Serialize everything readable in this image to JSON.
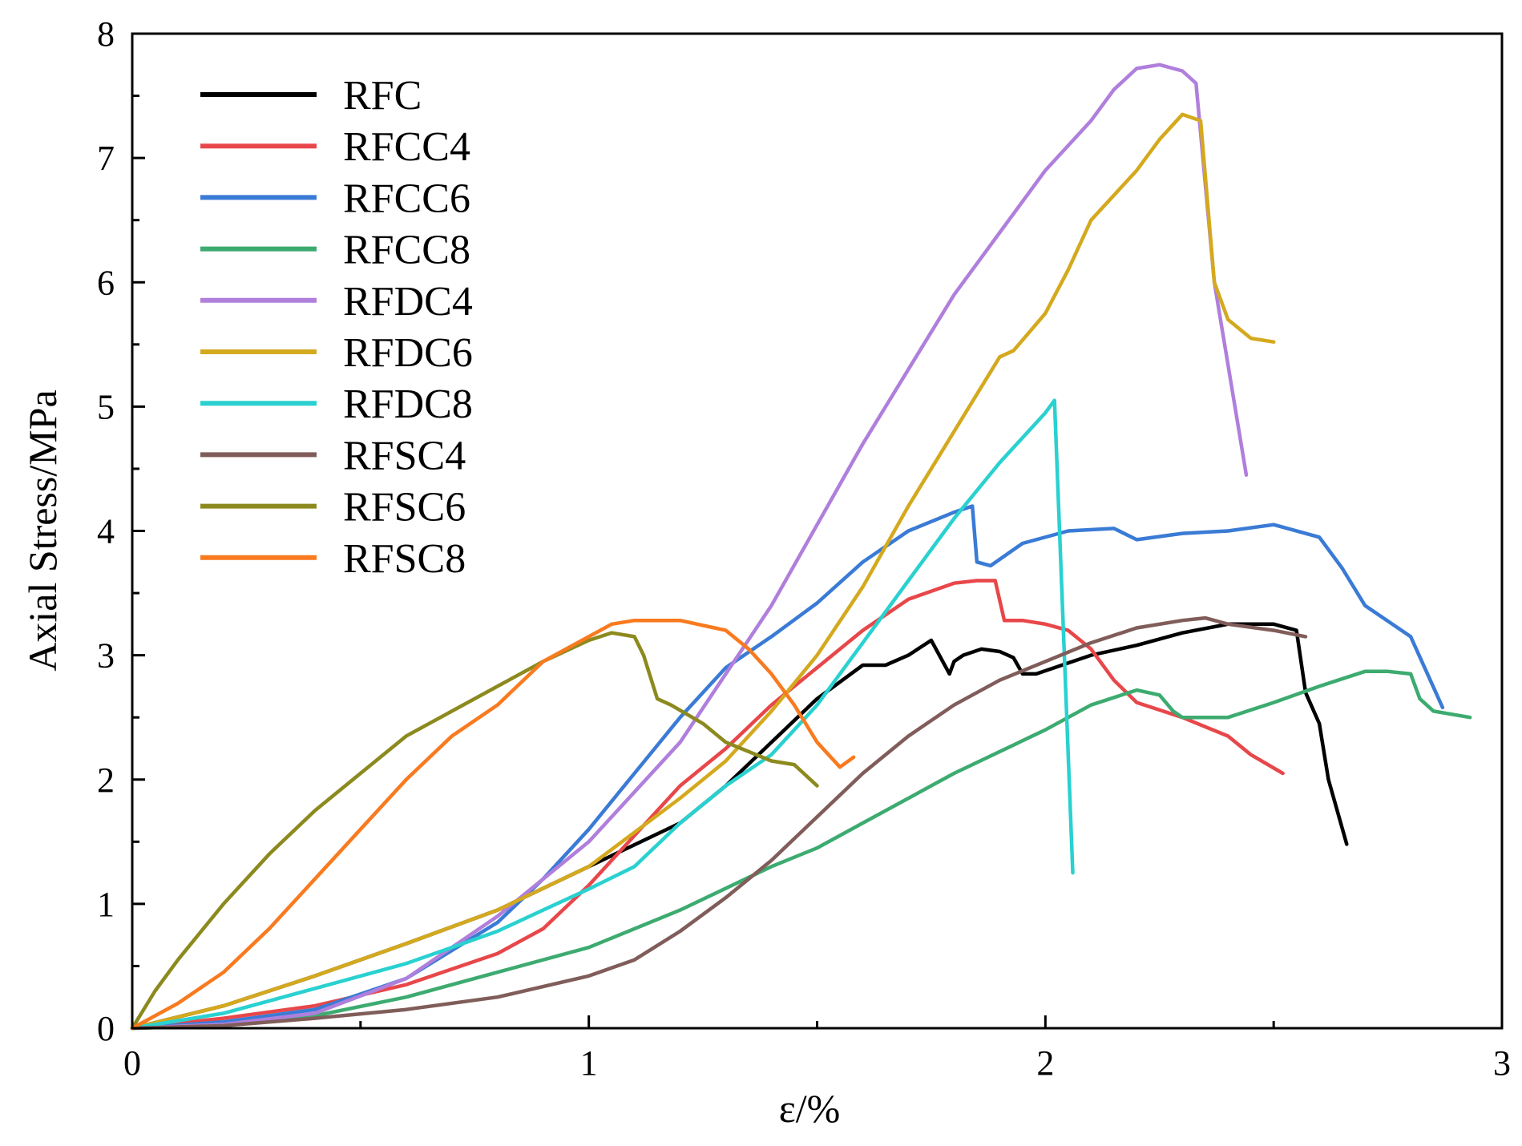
{
  "chart_data": {
    "type": "line",
    "title": "",
    "xlabel": "ε/%",
    "ylabel": "Axial Stress/MPa",
    "xlim": [
      0,
      3
    ],
    "ylim": [
      0,
      8
    ],
    "xticks": [
      0,
      1,
      2,
      3
    ],
    "xtick_labels": [
      "0",
      "1",
      "2",
      "3"
    ],
    "yticks": [
      0,
      1,
      2,
      3,
      4,
      5,
      6,
      7,
      8
    ],
    "ytick_labels": [
      "0",
      "1",
      "2",
      "3",
      "4",
      "5",
      "6",
      "7",
      "8"
    ],
    "legend_position": "top-left",
    "grid": false,
    "series": [
      {
        "name": "RFC",
        "color": "#000000",
        "x": [
          0,
          0.2,
          0.4,
          0.6,
          0.8,
          1.0,
          1.2,
          1.3,
          1.4,
          1.5,
          1.6,
          1.65,
          1.7,
          1.75,
          1.79,
          1.8,
          1.82,
          1.86,
          1.9,
          1.93,
          1.95,
          1.98,
          2.02,
          2.1,
          2.2,
          2.3,
          2.4,
          2.5,
          2.55,
          2.57,
          2.6,
          2.62,
          2.66
        ],
        "y": [
          0,
          0.18,
          0.42,
          0.68,
          0.95,
          1.3,
          1.65,
          1.95,
          2.3,
          2.65,
          2.92,
          2.92,
          3.0,
          3.12,
          2.85,
          2.95,
          3.0,
          3.05,
          3.03,
          2.98,
          2.85,
          2.85,
          2.9,
          3.0,
          3.08,
          3.18,
          3.25,
          3.25,
          3.2,
          2.7,
          2.45,
          2.0,
          1.48
        ]
      },
      {
        "name": "RFCC4",
        "color": "#e8474a",
        "x": [
          0,
          0.2,
          0.4,
          0.6,
          0.8,
          0.9,
          1.0,
          1.1,
          1.2,
          1.3,
          1.4,
          1.5,
          1.6,
          1.7,
          1.8,
          1.85,
          1.89,
          1.91,
          1.95,
          2.0,
          2.05,
          2.1,
          2.15,
          2.2,
          2.3,
          2.4,
          2.45,
          2.52
        ],
        "y": [
          0,
          0.08,
          0.18,
          0.35,
          0.6,
          0.8,
          1.15,
          1.55,
          1.95,
          2.25,
          2.6,
          2.9,
          3.2,
          3.45,
          3.58,
          3.6,
          3.6,
          3.28,
          3.28,
          3.25,
          3.2,
          3.05,
          2.8,
          2.62,
          2.5,
          2.35,
          2.2,
          2.05
        ]
      },
      {
        "name": "RFCC6",
        "color": "#3a7bd5",
        "x": [
          0,
          0.2,
          0.4,
          0.6,
          0.8,
          0.9,
          1.0,
          1.1,
          1.2,
          1.3,
          1.4,
          1.5,
          1.6,
          1.7,
          1.8,
          1.84,
          1.85,
          1.88,
          1.95,
          2.05,
          2.15,
          2.2,
          2.3,
          2.4,
          2.5,
          2.6,
          2.65,
          2.7,
          2.8,
          2.87
        ],
        "y": [
          0,
          0.05,
          0.15,
          0.4,
          0.85,
          1.2,
          1.6,
          2.05,
          2.5,
          2.9,
          3.15,
          3.42,
          3.75,
          4.0,
          4.15,
          4.2,
          3.75,
          3.72,
          3.9,
          4.0,
          4.02,
          3.93,
          3.98,
          4.0,
          4.05,
          3.95,
          3.7,
          3.4,
          3.15,
          2.58
        ]
      },
      {
        "name": "RFCC8",
        "color": "#3dab70",
        "x": [
          0,
          0.2,
          0.4,
          0.6,
          0.8,
          1.0,
          1.2,
          1.4,
          1.5,
          1.6,
          1.8,
          2.0,
          2.1,
          2.2,
          2.25,
          2.28,
          2.3,
          2.4,
          2.5,
          2.6,
          2.7,
          2.75,
          2.8,
          2.82,
          2.85,
          2.93
        ],
        "y": [
          0,
          0.02,
          0.1,
          0.25,
          0.45,
          0.65,
          0.95,
          1.3,
          1.45,
          1.65,
          2.05,
          2.4,
          2.6,
          2.72,
          2.68,
          2.55,
          2.5,
          2.5,
          2.62,
          2.75,
          2.87,
          2.87,
          2.85,
          2.65,
          2.55,
          2.5
        ]
      },
      {
        "name": "RFDC4",
        "color": "#b07fdc",
        "x": [
          0,
          0.2,
          0.4,
          0.6,
          0.8,
          1.0,
          1.2,
          1.4,
          1.6,
          1.8,
          2.0,
          2.1,
          2.15,
          2.2,
          2.25,
          2.3,
          2.33,
          2.37,
          2.44
        ],
        "y": [
          0,
          0.03,
          0.12,
          0.4,
          0.9,
          1.5,
          2.3,
          3.4,
          4.7,
          5.9,
          6.9,
          7.3,
          7.55,
          7.72,
          7.75,
          7.7,
          7.6,
          6.0,
          4.45
        ]
      },
      {
        "name": "RFDC6",
        "color": "#d4a91e",
        "x": [
          0,
          0.2,
          0.4,
          0.6,
          0.8,
          1.0,
          1.2,
          1.3,
          1.4,
          1.5,
          1.6,
          1.7,
          1.8,
          1.9,
          1.93,
          2.0,
          2.05,
          2.1,
          2.15,
          2.2,
          2.25,
          2.3,
          2.34,
          2.37,
          2.4,
          2.45,
          2.5
        ],
        "y": [
          0,
          0.18,
          0.42,
          0.68,
          0.95,
          1.3,
          1.85,
          2.15,
          2.55,
          3.0,
          3.55,
          4.2,
          4.8,
          5.4,
          5.45,
          5.75,
          6.1,
          6.5,
          6.7,
          6.9,
          7.15,
          7.35,
          7.3,
          6.0,
          5.7,
          5.55,
          5.52
        ]
      },
      {
        "name": "RFDC8",
        "color": "#29d1d0",
        "x": [
          0,
          0.2,
          0.4,
          0.6,
          0.7,
          0.8,
          0.9,
          1.0,
          1.1,
          1.2,
          1.3,
          1.4,
          1.5,
          1.6,
          1.7,
          1.8,
          1.9,
          2.0,
          2.02,
          2.06
        ],
        "y": [
          0,
          0.12,
          0.32,
          0.52,
          0.65,
          0.78,
          0.95,
          1.12,
          1.3,
          1.65,
          1.95,
          2.2,
          2.6,
          3.1,
          3.6,
          4.1,
          4.55,
          4.95,
          5.05,
          1.25
        ]
      },
      {
        "name": "RFSC4",
        "color": "#805d5a",
        "x": [
          0,
          0.2,
          0.4,
          0.6,
          0.8,
          1.0,
          1.1,
          1.2,
          1.3,
          1.4,
          1.5,
          1.6,
          1.7,
          1.8,
          1.9,
          2.0,
          2.1,
          2.2,
          2.3,
          2.35,
          2.4,
          2.5,
          2.57
        ],
        "y": [
          0,
          0.02,
          0.08,
          0.15,
          0.25,
          0.42,
          0.55,
          0.78,
          1.05,
          1.35,
          1.7,
          2.05,
          2.35,
          2.6,
          2.8,
          2.95,
          3.1,
          3.22,
          3.28,
          3.3,
          3.25,
          3.2,
          3.15
        ]
      },
      {
        "name": "RFSC6",
        "color": "#8c8a1e",
        "x": [
          0,
          0.05,
          0.1,
          0.2,
          0.3,
          0.4,
          0.5,
          0.6,
          0.7,
          0.8,
          0.9,
          1.0,
          1.05,
          1.1,
          1.12,
          1.15,
          1.18,
          1.25,
          1.3,
          1.4,
          1.45,
          1.5
        ],
        "y": [
          0,
          0.3,
          0.55,
          1.0,
          1.4,
          1.75,
          2.05,
          2.35,
          2.55,
          2.75,
          2.95,
          3.12,
          3.18,
          3.15,
          3.0,
          2.65,
          2.6,
          2.45,
          2.3,
          2.15,
          2.12,
          1.95
        ]
      },
      {
        "name": "RFSC8",
        "color": "#f97a1f",
        "x": [
          0,
          0.1,
          0.2,
          0.3,
          0.4,
          0.5,
          0.6,
          0.7,
          0.8,
          0.9,
          1.0,
          1.05,
          1.1,
          1.2,
          1.3,
          1.35,
          1.4,
          1.45,
          1.5,
          1.55,
          1.58
        ],
        "y": [
          0,
          0.2,
          0.45,
          0.8,
          1.2,
          1.6,
          2.0,
          2.35,
          2.6,
          2.95,
          3.15,
          3.25,
          3.28,
          3.28,
          3.2,
          3.05,
          2.85,
          2.6,
          2.3,
          2.1,
          2.18
        ]
      }
    ]
  }
}
